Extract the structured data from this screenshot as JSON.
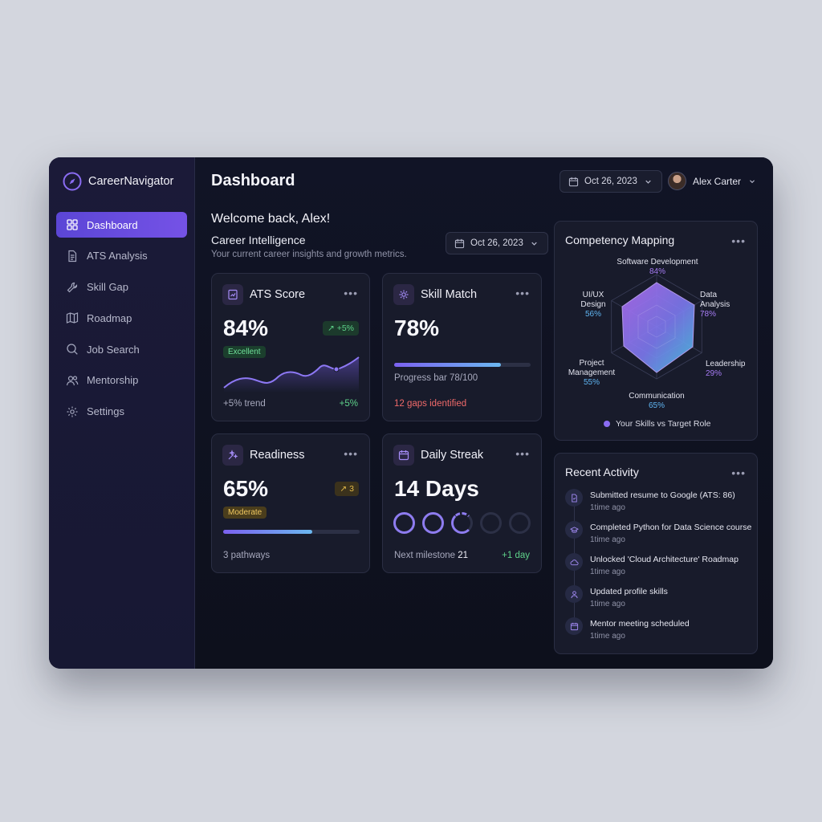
{
  "app": {
    "name": "CareerNavigator"
  },
  "sidebar": {
    "items": [
      {
        "label": "Dashboard",
        "icon": "grid-icon",
        "active": true
      },
      {
        "label": "ATS Analysis",
        "icon": "document-icon"
      },
      {
        "label": "Skill Gap",
        "icon": "wrench-icon"
      },
      {
        "label": "Roadmap",
        "icon": "map-icon"
      },
      {
        "label": "Job Search",
        "icon": "search-icon"
      },
      {
        "label": "Mentorship",
        "icon": "users-icon"
      },
      {
        "label": "Settings",
        "icon": "gear-icon"
      }
    ]
  },
  "header": {
    "title": "Dashboard",
    "date": "Oct 26, 2023",
    "user_name": "Alex Carter"
  },
  "intro": {
    "welcome": "Welcome back, Alex!",
    "section_title": "Career Intelligence",
    "section_subtitle": "Your current career insights and growth metrics.",
    "date": "Oct 26, 2023"
  },
  "cards": {
    "ats": {
      "title": "ATS Score",
      "value": "84%",
      "badge": "Excellent",
      "change": "+5%",
      "footer_left": "+5% trend",
      "footer_right": "+5%"
    },
    "skill": {
      "title": "Skill Match",
      "value": "78%",
      "progress": 0.78,
      "progress_label": "Progress bar 78/100",
      "gaps": "12 gaps identified"
    },
    "readiness": {
      "title": "Readiness",
      "value": "65%",
      "badge": "Moderate",
      "change": "3",
      "progress": 0.65,
      "footer_left": "3 pathways"
    },
    "streak": {
      "title": "Daily Streak",
      "value": "14 Days",
      "rings": [
        "done",
        "done",
        "partial",
        "empty",
        "empty"
      ],
      "footer_label": "Next milestone",
      "footer_value": "21",
      "footer_right": "+1 day"
    }
  },
  "competency": {
    "title": "Competency Mapping",
    "legend": "Your Skills vs Target Role",
    "axes": [
      {
        "label": "Software Development",
        "value": "84%"
      },
      {
        "label": "Data Analysis",
        "value": "78%"
      },
      {
        "label": "Leadership",
        "value": "29%"
      },
      {
        "label": "Communication",
        "value": "65%"
      },
      {
        "label": "Project Management",
        "value": "55%"
      },
      {
        "label": "UI/UX Design",
        "value": "56%"
      }
    ]
  },
  "activity": {
    "title": "Recent Activity",
    "items": [
      {
        "text": "Submitted resume to Google (ATS: 86)",
        "time": "1time ago",
        "icon": "file-icon"
      },
      {
        "text": "Completed Python for Data Science course",
        "time": "1time ago",
        "icon": "graduation-cap-icon"
      },
      {
        "text": "Unlocked 'Cloud Architecture' Roadmap",
        "time": "1time ago",
        "icon": "cloud-icon"
      },
      {
        "text": "Updated profile skills",
        "time": "1time ago",
        "icon": "user-icon"
      },
      {
        "text": "Mentor meeting scheduled",
        "time": "1time ago",
        "icon": "calendar-icon"
      }
    ]
  },
  "colors": {
    "accent": "#7552e6",
    "positive": "#4ccf7a",
    "negative": "#f06a6a",
    "warning": "#e2b94a"
  }
}
